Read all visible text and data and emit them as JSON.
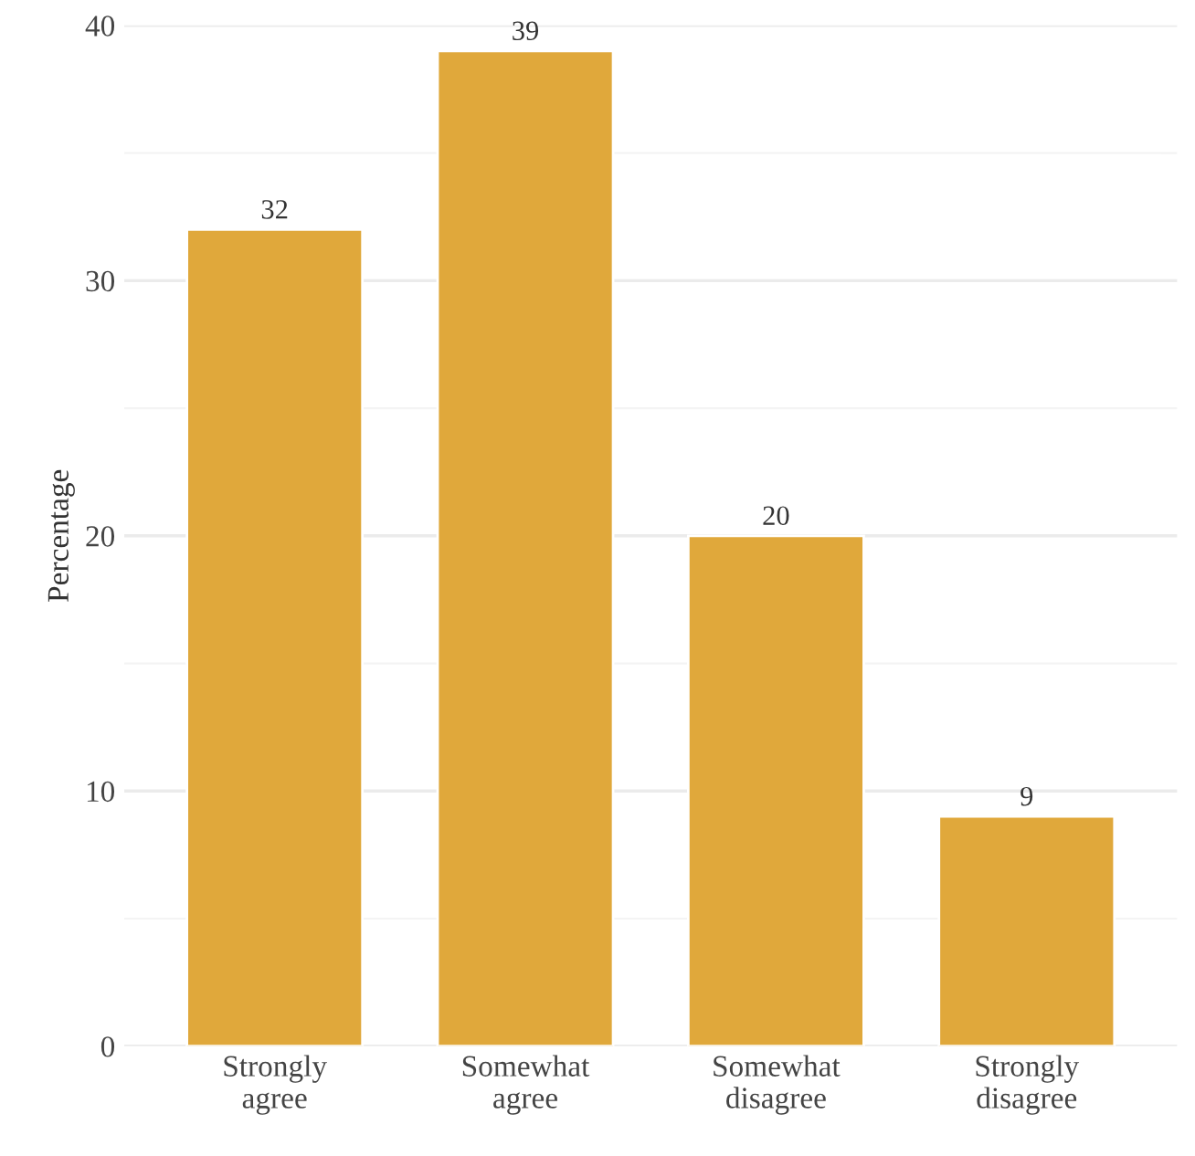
{
  "chart_data": {
    "type": "bar",
    "ylabel": "Percentage",
    "categories": [
      "Strongly\nagree",
      "Somewhat\nagree",
      "Somewhat\ndisagree",
      "Strongly\ndisagree"
    ],
    "values": [
      32,
      39,
      20,
      9
    ],
    "color": "#e0a83b",
    "data_labels": true,
    "ylim": [
      0,
      40
    ],
    "yticks": [
      0,
      {
        "value": 5,
        "label": null
      },
      10,
      {
        "value": 15,
        "label": null
      },
      20,
      {
        "value": 25,
        "label": null
      },
      30,
      {
        "value": 35,
        "label": null
      },
      40
    ],
    "grid": "y"
  }
}
